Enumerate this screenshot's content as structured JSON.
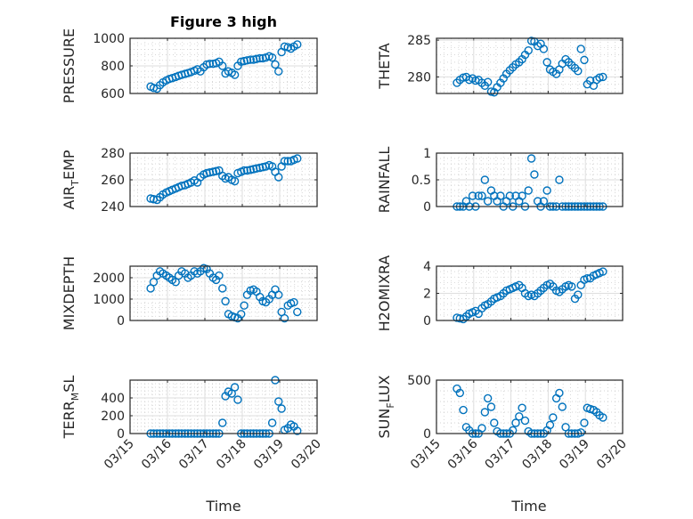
{
  "chart_data": {
    "type": "scatter",
    "title": "Figure 3 high",
    "xlabel": "Time",
    "x_tick_labels": [
      "03/15",
      "03/16",
      "03/17",
      "03/18",
      "03/19",
      "03/20"
    ],
    "x_ticks_day_of_march": [
      15,
      16,
      17,
      18,
      19,
      20
    ],
    "xlim_day_of_march": [
      15,
      20
    ],
    "grid": "on (major + minor)",
    "marker": "open circle",
    "color": "#0072BD",
    "time_day_of_march": [
      15.55,
      15.63,
      15.72,
      15.8,
      15.88,
      15.97,
      16.05,
      16.13,
      16.22,
      16.3,
      16.38,
      16.47,
      16.55,
      16.63,
      16.72,
      16.8,
      16.88,
      16.97,
      17.05,
      17.13,
      17.22,
      17.3,
      17.38,
      17.47,
      17.55,
      17.63,
      17.72,
      17.8,
      17.88,
      17.97,
      18.05,
      18.13,
      18.22,
      18.3,
      18.38,
      18.47,
      18.55,
      18.63,
      18.72,
      18.8,
      18.88,
      18.97,
      19.05,
      19.13,
      19.22,
      19.3,
      19.38,
      19.47
    ],
    "panels": [
      {
        "ylabel": "PRESSURE",
        "ylim": [
          600,
          1000
        ],
        "yticks": [
          600,
          800,
          1000
        ],
        "ytick_labels": [
          "600",
          "800",
          "1000"
        ],
        "values": [
          650,
          640,
          635,
          660,
          680,
          695,
          705,
          712,
          720,
          728,
          735,
          742,
          748,
          755,
          765,
          775,
          760,
          790,
          810,
          815,
          815,
          820,
          830,
          800,
          745,
          760,
          750,
          735,
          800,
          830,
          835,
          840,
          845,
          845,
          850,
          855,
          855,
          860,
          870,
          860,
          810,
          760,
          900,
          940,
          935,
          925,
          940,
          955
        ]
      },
      {
        "ylabel": "THETA",
        "ylim": [
          277.75,
          285.25
        ],
        "yticks": [
          280,
          285
        ],
        "ytick_labels": [
          "280",
          "285"
        ],
        "values": [
          279.2,
          279.6,
          279.9,
          280.0,
          279.6,
          279.8,
          279.5,
          279.6,
          279.2,
          278.8,
          279.3,
          278.0,
          277.9,
          278.6,
          279.2,
          279.8,
          280.4,
          280.9,
          281.3,
          281.7,
          282.0,
          282.4,
          283.0,
          283.6,
          284.9,
          284.8,
          284.2,
          284.5,
          283.8,
          282.0,
          281.0,
          280.7,
          280.4,
          281.0,
          281.8,
          282.4,
          282.0,
          281.6,
          281.2,
          280.8,
          283.8,
          282.3,
          279.0,
          279.5,
          278.8,
          279.6,
          279.9,
          280.0
        ]
      },
      {
        "ylabel": "AIR_TEMP",
        "ylim": [
          240,
          280
        ],
        "yticks": [
          240,
          260,
          280
        ],
        "ytick_labels": [
          "240",
          "260",
          "280"
        ],
        "values": [
          246,
          245.5,
          245,
          247,
          249,
          250.5,
          251.5,
          252.5,
          253.5,
          254.5,
          255.5,
          256,
          257,
          258,
          259.5,
          258,
          262,
          264,
          265,
          265.5,
          266,
          266.5,
          267,
          263,
          261,
          262,
          260,
          259,
          265,
          266,
          267,
          267,
          267.5,
          268,
          268.5,
          269,
          269.5,
          270,
          271,
          270,
          266,
          262,
          270,
          274,
          274,
          274,
          275,
          276
        ]
      },
      {
        "ylabel": "RAINFALL",
        "ylim": [
          0,
          1
        ],
        "yticks": [
          0,
          0.5,
          1
        ],
        "ytick_labels": [
          "0",
          "0.5",
          "1"
        ],
        "values": [
          0,
          0,
          0,
          0.1,
          0,
          0.2,
          0,
          0.2,
          0.2,
          0.5,
          0.1,
          0.3,
          0.2,
          0.1,
          0.2,
          0,
          0.1,
          0.2,
          0,
          0.2,
          0.1,
          0.2,
          0,
          0.3,
          0.9,
          0.6,
          0.1,
          0,
          0.1,
          0.3,
          0,
          0,
          0,
          0.5,
          0,
          0,
          0,
          0,
          0,
          0,
          0,
          0,
          0,
          0,
          0,
          0,
          0,
          0
        ]
      },
      {
        "ylabel": "MIXDEPTH",
        "ylim": [
          0,
          2540
        ],
        "yticks": [
          0,
          1000,
          2000
        ],
        "ytick_labels": [
          "0",
          "1000",
          "2000"
        ],
        "values": [
          1500,
          1800,
          2100,
          2300,
          2200,
          2100,
          2000,
          1900,
          1800,
          2100,
          2300,
          2200,
          2000,
          2100,
          2300,
          2200,
          2300,
          2450,
          2400,
          2200,
          2000,
          1900,
          2100,
          1500,
          900,
          300,
          200,
          150,
          100,
          300,
          700,
          1200,
          1400,
          1450,
          1350,
          1100,
          900,
          850,
          1000,
          1200,
          1450,
          1200,
          400,
          100,
          700,
          800,
          850,
          400
        ]
      },
      {
        "ylabel": "H2OMIXRA",
        "ylim": [
          0,
          4
        ],
        "yticks": [
          0,
          2,
          4
        ],
        "ytick_labels": [
          "0",
          "2",
          "4"
        ],
        "values": [
          0.2,
          0.15,
          0.1,
          0.3,
          0.5,
          0.6,
          0.7,
          0.5,
          0.9,
          1.1,
          1.2,
          1.4,
          1.6,
          1.7,
          1.8,
          2.0,
          2.2,
          2.3,
          2.4,
          2.5,
          2.6,
          2.4,
          2.0,
          1.8,
          1.9,
          1.8,
          2.0,
          2.2,
          2.4,
          2.6,
          2.7,
          2.5,
          2.2,
          2.1,
          2.3,
          2.5,
          2.6,
          2.5,
          1.6,
          1.9,
          2.6,
          3.0,
          3.1,
          3.1,
          3.3,
          3.4,
          3.5,
          3.6
        ]
      },
      {
        "ylabel": "TERR_MSL",
        "ylim": [
          0,
          600
        ],
        "yticks": [
          0,
          200,
          400
        ],
        "ytick_labels": [
          "0",
          "200",
          "400"
        ],
        "values": [
          0,
          0,
          0,
          0,
          0,
          0,
          0,
          0,
          0,
          0,
          0,
          0,
          0,
          0,
          0,
          0,
          0,
          0,
          0,
          0,
          0,
          0,
          0,
          120,
          420,
          470,
          450,
          520,
          380,
          0,
          0,
          0,
          0,
          0,
          0,
          0,
          0,
          0,
          0,
          120,
          600,
          360,
          280,
          40,
          60,
          100,
          80,
          30
        ]
      },
      {
        "ylabel": "SUN_FLUX",
        "ylim": [
          0,
          500
        ],
        "yticks": [
          0,
          500
        ],
        "ytick_labels": [
          "0",
          "500"
        ],
        "values": [
          420,
          380,
          220,
          60,
          30,
          0,
          0,
          0,
          50,
          200,
          330,
          250,
          100,
          20,
          0,
          0,
          0,
          0,
          30,
          100,
          160,
          240,
          120,
          20,
          0,
          0,
          0,
          0,
          0,
          30,
          80,
          150,
          330,
          380,
          250,
          60,
          0,
          0,
          0,
          0,
          10,
          100,
          240,
          230,
          220,
          200,
          170,
          150
        ]
      }
    ]
  }
}
